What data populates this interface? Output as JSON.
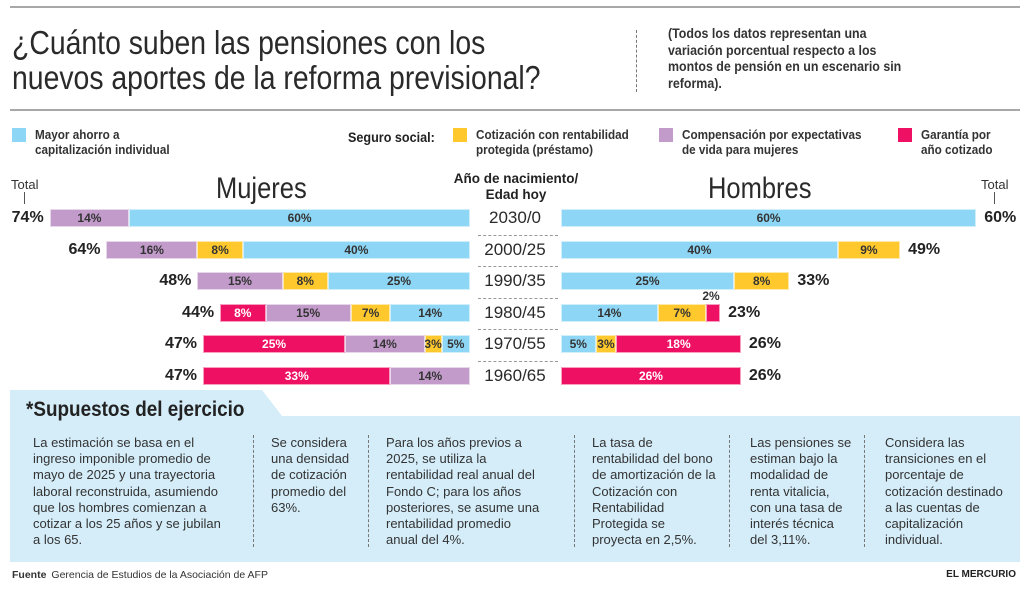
{
  "header": {
    "title_lines": [
      "¿Cuánto suben las pensiones con los",
      "nuevos aportes de la reforma previsional?"
    ],
    "subtitle": "(Todos los datos representan una variación porcentual respecto a los montos de pensión en un escenario sin reforma)."
  },
  "legend": {
    "seguro_social_label": "Seguro social:",
    "items": [
      {
        "key": "ahorro",
        "label_lines": [
          "Mayor ahorro a",
          "capitalización individual"
        ],
        "color": "#8dd6f5"
      },
      {
        "key": "cotizacion",
        "label_lines": [
          "Cotización con rentabilidad",
          "protegida (préstamo)"
        ],
        "color": "#ffc82c"
      },
      {
        "key": "compensacion",
        "label_lines": [
          "Compensación por expectativas",
          "de vida para mujeres"
        ],
        "color": "#c29bcb"
      },
      {
        "key": "garantia",
        "label_lines": [
          "Garantía por",
          "año cotizado"
        ],
        "color": "#ee1163"
      }
    ]
  },
  "chart_data": {
    "type": "bar",
    "orientation": "horizontal-stacked-butterfly",
    "title": "¿Cuánto suben las pensiones con los nuevos aportes de la reforma previsional?",
    "unit": "%",
    "center_header": [
      "Año de nacimiento/",
      "Edad hoy"
    ],
    "total_label": "Total",
    "categories": [
      "2030/0",
      "2000/25",
      "1990/35",
      "1980/45",
      "1970/55",
      "1960/65"
    ],
    "panels": [
      {
        "name": "Mujeres",
        "side": "left",
        "order_from_center": [
          "ahorro",
          "cotizacion",
          "compensacion",
          "garantia"
        ],
        "series": {
          "ahorro": [
            60,
            40,
            25,
            14,
            5,
            0
          ],
          "cotizacion": [
            0,
            8,
            8,
            7,
            3,
            0
          ],
          "compensacion": [
            14,
            16,
            15,
            15,
            14,
            14
          ],
          "garantia": [
            0,
            0,
            0,
            8,
            25,
            33
          ]
        },
        "totals": [
          74,
          64,
          48,
          44,
          47,
          47
        ]
      },
      {
        "name": "Hombres",
        "side": "right",
        "order_from_center": [
          "ahorro",
          "cotizacion",
          "garantia"
        ],
        "series": {
          "ahorro": [
            60,
            40,
            25,
            14,
            5,
            0
          ],
          "cotizacion": [
            0,
            9,
            8,
            7,
            3,
            0
          ],
          "compensacion": [
            0,
            0,
            0,
            0,
            0,
            0
          ],
          "garantia": [
            0,
            0,
            0,
            2,
            18,
            26
          ]
        },
        "totals": [
          60,
          49,
          33,
          23,
          26,
          26
        ]
      }
    ]
  },
  "notes": {
    "title": "*Supuestos del ejercicio",
    "columns": [
      [
        "La estimación se basa en el",
        "ingreso imponible promedio de",
        "mayo de 2025 y una trayectoria",
        "laboral reconstruida, asumiendo",
        "que los hombres comienzan a",
        "cotizar a los 25 años y se jubilan",
        "a los 65."
      ],
      [
        "Se considera",
        "una densidad",
        "de cotización",
        "promedio del",
        "63%."
      ],
      [
        "Para los años previos a",
        "2025, se utiliza la",
        "rentabilidad real anual del",
        "Fondo C; para los años",
        "posteriores, se asume una",
        "rentabilidad promedio",
        "anual del 4%."
      ],
      [
        "La tasa de",
        "rentabilidad del bono",
        "de amortización de la",
        "Cotización con",
        "Rentabilidad",
        "Protegida se",
        "proyecta en 2,5%."
      ],
      [
        "Las pensiones se",
        "estiman bajo la",
        "modalidad de",
        "renta vitalicia,",
        "con una tasa de",
        "interés técnica",
        "del 3,11%."
      ],
      [
        "Considera las",
        "transiciones en el",
        "porcentaje de",
        "cotización destinado",
        "a las cuentas de",
        "capitalización",
        "individual."
      ]
    ]
  },
  "footer": {
    "source_label": "Fuente",
    "source_text": "Gerencia de Estudios de la Asociación de AFP",
    "brand": "EL MERCURIO"
  }
}
